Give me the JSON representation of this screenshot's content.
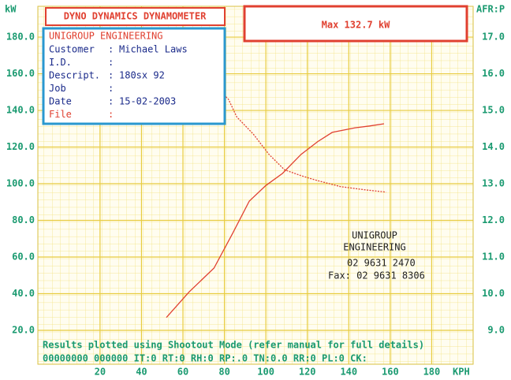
{
  "chart_data": {
    "type": "line",
    "title": "DYNO DYNAMICS DYNAMOMETER",
    "annotation": "Max 132.7 kW",
    "y_label": "kW",
    "y2_label": "AFR:P",
    "x_label": "KPH",
    "xlim": [
      -10,
      200
    ],
    "xticks": [
      20,
      40,
      60,
      80,
      100,
      120,
      140,
      160,
      180
    ],
    "ylim": [
      1.5,
      196.8
    ],
    "yticks": [
      {
        "value": 20,
        "label": "20.0"
      },
      {
        "value": 40,
        "label": "40.0"
      },
      {
        "value": 60,
        "label": "60.0"
      },
      {
        "value": 80,
        "label": "80.0"
      },
      {
        "value": 100,
        "label": "100.0"
      },
      {
        "value": 120,
        "label": "120.0"
      },
      {
        "value": 140,
        "label": "140.0"
      },
      {
        "value": 160,
        "label": "160.0"
      },
      {
        "value": 180,
        "label": "180.0"
      }
    ],
    "y2lim": [
      8.075,
      17.84
    ],
    "y2ticks": [
      {
        "value": 9,
        "label": "9.0"
      },
      {
        "value": 10,
        "label": "10.0"
      },
      {
        "value": 11,
        "label": "11.0"
      },
      {
        "value": 12,
        "label": "12.0"
      },
      {
        "value": 13,
        "label": "13.0"
      },
      {
        "value": 14,
        "label": "14.0"
      },
      {
        "value": 15,
        "label": "15.0"
      },
      {
        "value": 16,
        "label": "16.0"
      },
      {
        "value": 17,
        "label": "17.0"
      }
    ],
    "grid": true,
    "series": [
      {
        "color": "#e04030",
        "x": [
          52,
          63,
          75,
          84,
          92,
          100,
          108,
          117,
          125,
          132,
          143,
          150,
          157
        ],
        "values": [
          27,
          41,
          54,
          73,
          90.5,
          99,
          105.6,
          116,
          123,
          128,
          130.5,
          131.5,
          132.7
        ]
      },
      {
        "color": "#e04030",
        "axis": "y2",
        "x": [
          52,
          60,
          65,
          71,
          79,
          82,
          86,
          94,
          101.5,
          109,
          117,
          124,
          136,
          147,
          158
        ],
        "values": [
          16.33,
          15.96,
          15.53,
          15.47,
          15.47,
          15.3,
          14.82,
          14.35,
          13.8,
          13.38,
          13.22,
          13.1,
          12.92,
          12.84,
          12.77
        ]
      }
    ],
    "info": {
      "company": "UNIGROUP ENGINEERING",
      "rows": [
        [
          "Customer",
          ":",
          "Michael Laws"
        ],
        [
          "I.D.",
          ":",
          ""
        ],
        [
          "Descript.",
          ":",
          "180sx 92"
        ],
        [
          "Job",
          ":",
          ""
        ],
        [
          "Date",
          ":",
          "15-02-2003"
        ],
        [
          "File",
          ":",
          ""
        ]
      ]
    },
    "stamp": [
      "UNIGROUP",
      "ENGINEERING",
      "02 9631 2470",
      "Fax: 02 9631 8306"
    ],
    "footer": [
      "Results plotted using Shootout Mode (refer manual for full details)",
      "00000000 000000 IT:0 RT:0 RH:0 RP:.0 TN:0.0 RR:0 PL:0 CK:"
    ]
  }
}
